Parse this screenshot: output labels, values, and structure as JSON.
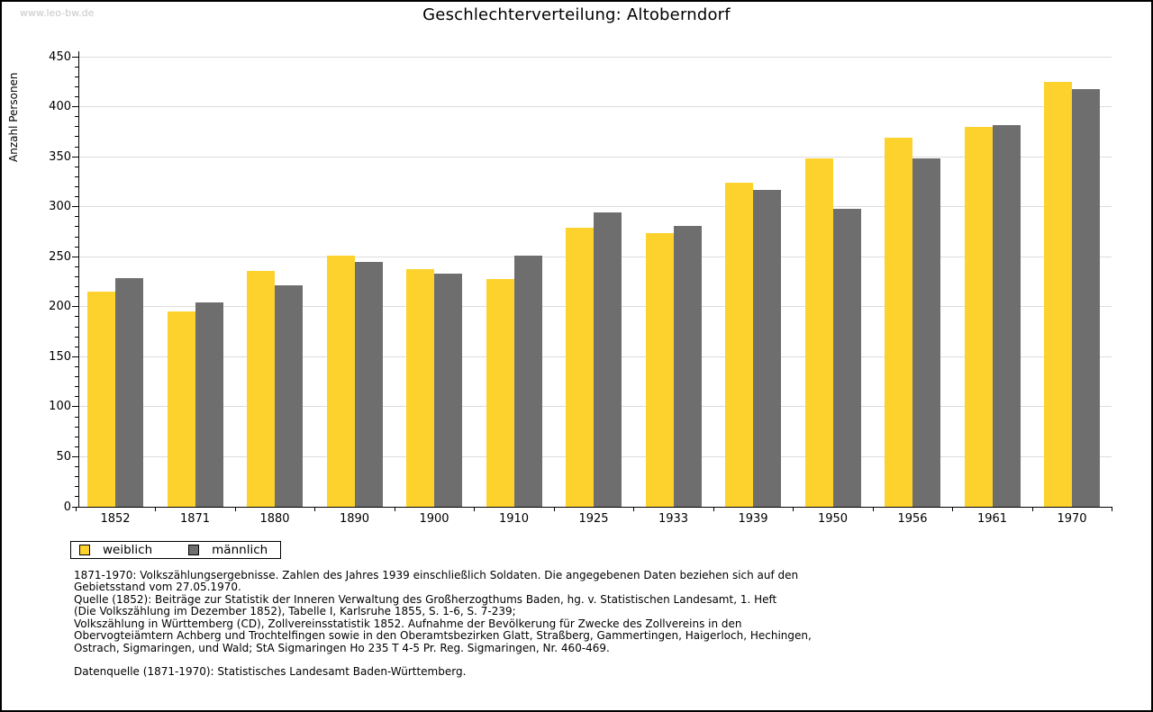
{
  "watermark": "www.leo-bw.de",
  "title": "Geschlechterverteilung: Altoberndorf",
  "chart_data": {
    "type": "bar",
    "title": "Geschlechterverteilung: Altoberndorf",
    "xlabel": "",
    "ylabel": "Anzahl Personen",
    "categories": [
      "1852",
      "1871",
      "1880",
      "1890",
      "1900",
      "1910",
      "1925",
      "1933",
      "1939",
      "1950",
      "1956",
      "1961",
      "1970"
    ],
    "series": [
      {
        "name": "weiblich",
        "color": "#FDD22D",
        "values": [
          215,
          195,
          236,
          251,
          238,
          228,
          279,
          274,
          324,
          348,
          369,
          380,
          425
        ]
      },
      {
        "name": "männlich",
        "color": "#6E6E6E",
        "values": [
          229,
          204,
          221,
          245,
          233,
          251,
          294,
          281,
          317,
          298,
          348,
          382,
          418
        ]
      }
    ],
    "ylim": [
      0,
      450
    ],
    "ytick_step": 50,
    "minor_tick_step": 10,
    "grid": true,
    "legend_position": "bottom-left",
    "gridline_color": "#DCDCDC",
    "axis_color": "#000000"
  },
  "notes": {
    "census": "1871-1970: Volkszählungsergebnisse. Zahlen des Jahres 1939 einschließlich Soldaten. Die angegebenen Daten beziehen sich auf den\nGebietsstand vom 27.05.1970.\nQuelle (1852): Beiträge zur Statistik der Inneren Verwaltung des Großherzogthums Baden, hg. v. Statistischen Landesamt, 1. Heft\n(Die Volkszählung im Dezember 1852), Tabelle I, Karlsruhe 1855, S. 1-6, S. 7-239;\nVolkszählung in Württemberg (CD), Zollvereinsstatistik 1852. Aufnahme der Bevölkerung für Zwecke des Zollvereins in den\nObervogteiämtern Achberg und Trochtelfingen sowie in den Oberamtsbezirken Glatt, Straßberg, Gammertingen, Haigerloch, Hechingen,\nOstrach, Sigmaringen, und Wald; StA Sigmaringen Ho 235 T 4-5 Pr. Reg. Sigmaringen, Nr. 460-469.",
    "datasource": "Datenquelle (1871-1970): Statistisches Landesamt Baden-Württemberg."
  }
}
